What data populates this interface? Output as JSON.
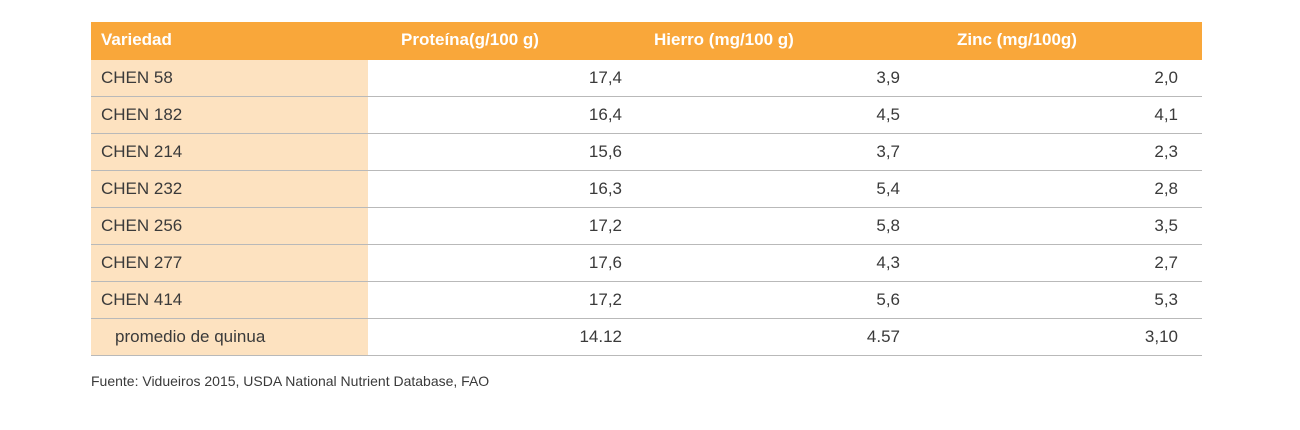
{
  "table": {
    "headers": [
      "Variedad",
      "Proteína(g/100 g)",
      "Hierro (mg/100  g)",
      "Zinc (mg/100g)"
    ],
    "rows": [
      [
        "CHEN 58",
        "17,4",
        "3,9",
        "2,0"
      ],
      [
        "CHEN 182",
        "16,4",
        "4,5",
        "4,1"
      ],
      [
        "CHEN 214",
        "15,6",
        "3,7",
        "2,3"
      ],
      [
        "CHEN 232",
        "16,3",
        "5,4",
        "2,8"
      ],
      [
        "CHEN 256",
        "17,2",
        "5,8",
        "3,5"
      ],
      [
        "CHEN 277",
        "17,6",
        "4,3",
        "2,7"
      ],
      [
        "CHEN 414",
        "17,2",
        "5,6",
        "5,3"
      ],
      [
        "promedio de  quinua",
        "14.12",
        "4.57",
        "3,10"
      ]
    ]
  },
  "source": "Fuente: Vidueiros 2015, USDA National Nutrient Database, FAO",
  "colors": {
    "header_bg": "#f9a73a",
    "first_col_bg": "#fde2c0",
    "row_border": "#b9b9b9"
  }
}
